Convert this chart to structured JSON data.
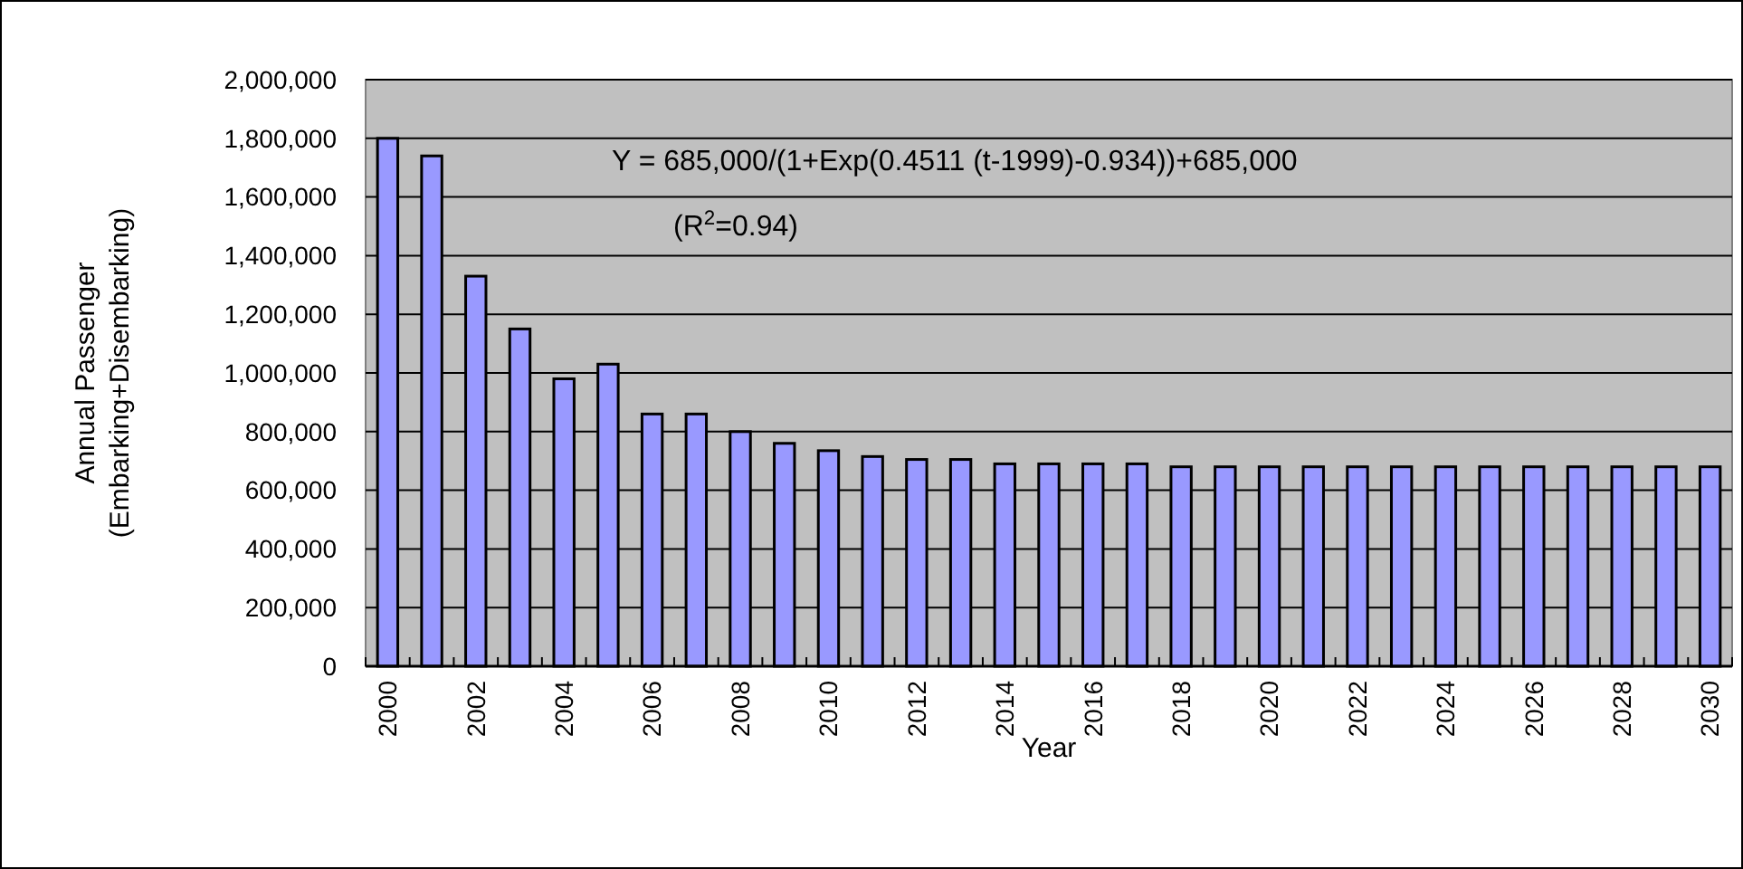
{
  "chart_data": {
    "type": "bar",
    "xlabel": "Year",
    "ylabel": "Annual Passenger\n(Embarking+Disembarking)",
    "categories": [
      "2000",
      null,
      "2002",
      null,
      "2004",
      null,
      "2006",
      null,
      "2008",
      null,
      "2010",
      null,
      "2012",
      null,
      "2014",
      null,
      "2016",
      null,
      "2018",
      null,
      "2020",
      null,
      "2022",
      null,
      "2024",
      null,
      "2026",
      null,
      "2028",
      null,
      "2030"
    ],
    "values": [
      1800000,
      1740000,
      1330000,
      1150000,
      980000,
      1030000,
      860000,
      860000,
      800000,
      760000,
      735000,
      715000,
      705000,
      705000,
      690000,
      690000,
      690000,
      690000,
      680000,
      680000,
      680000,
      680000,
      680000,
      680000,
      680000,
      680000,
      680000,
      680000,
      680000,
      680000,
      680000
    ],
    "color": "#9999ff",
    "ylim": [
      0,
      2000000
    ],
    "yticks": [
      {
        "value": 0,
        "label": "0"
      },
      {
        "value": 200000,
        "label": "200,000"
      },
      {
        "value": 400000,
        "label": "400,000"
      },
      {
        "value": 600000,
        "label": "600,000"
      },
      {
        "value": 800000,
        "label": "800,000"
      },
      {
        "value": 1000000,
        "label": "1,000,000"
      },
      {
        "value": 1200000,
        "label": "1,200,000"
      },
      {
        "value": 1400000,
        "label": "1,400,000"
      },
      {
        "value": 1600000,
        "label": "1,600,000"
      },
      {
        "value": 1800000,
        "label": "1,800,000"
      },
      {
        "value": 2000000,
        "label": "2,000,000"
      }
    ],
    "grid": "y",
    "annotations": [
      "Y = 685,000/(1+Exp(0.4511 (t-1999)-0.934))+685,000",
      "(R$^{2}$=0.94)"
    ]
  }
}
